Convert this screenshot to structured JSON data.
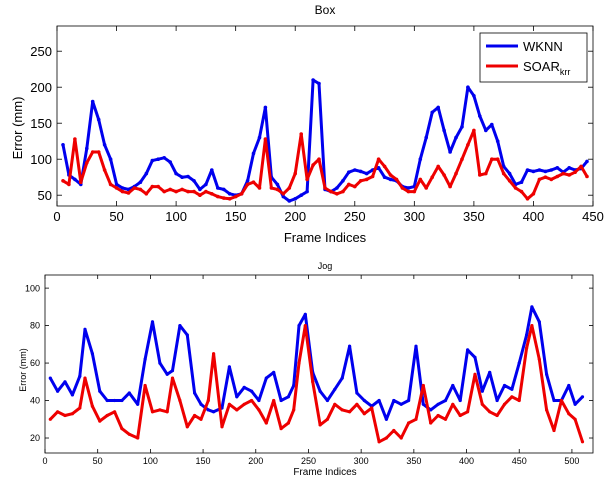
{
  "chart_data": [
    {
      "type": "line",
      "title": "Box",
      "xlabel": "Frame Indices",
      "ylabel": "Error (mm)",
      "xlim": [
        0,
        450
      ],
      "ylim": [
        35,
        285
      ],
      "xticks": [
        0,
        50,
        100,
        150,
        200,
        250,
        300,
        350,
        400,
        450
      ],
      "yticks": [
        50,
        100,
        150,
        200,
        250
      ],
      "legend": {
        "placement": "top-right",
        "entries": [
          "WKNN",
          "SOAR"
        ],
        "subscript": "krr"
      },
      "series": [
        {
          "name": "WKNN",
          "color": "#0000ee",
          "x": [
            5,
            10,
            15,
            20,
            25,
            30,
            35,
            40,
            45,
            50,
            55,
            60,
            65,
            70,
            75,
            80,
            85,
            90,
            95,
            100,
            105,
            110,
            115,
            120,
            125,
            130,
            135,
            140,
            145,
            150,
            155,
            160,
            165,
            170,
            175,
            180,
            185,
            190,
            195,
            200,
            205,
            210,
            215,
            220,
            225,
            230,
            235,
            240,
            245,
            250,
            255,
            260,
            265,
            270,
            275,
            280,
            285,
            290,
            295,
            300,
            305,
            310,
            315,
            320,
            325,
            330,
            335,
            340,
            345,
            350,
            355,
            360,
            365,
            370,
            375,
            380,
            385,
            390,
            395,
            400,
            405,
            410,
            415,
            420,
            425,
            430,
            435,
            440,
            445
          ],
          "y": [
            120,
            78,
            72,
            65,
            115,
            180,
            155,
            120,
            100,
            65,
            60,
            58,
            62,
            68,
            80,
            98,
            100,
            102,
            96,
            80,
            75,
            76,
            70,
            58,
            65,
            85,
            60,
            58,
            52,
            50,
            52,
            70,
            108,
            130,
            172,
            75,
            65,
            48,
            42,
            45,
            50,
            55,
            210,
            205,
            58,
            55,
            60,
            70,
            82,
            85,
            83,
            80,
            85,
            88,
            75,
            72,
            70,
            62,
            60,
            62,
            100,
            130,
            165,
            172,
            140,
            110,
            130,
            145,
            200,
            188,
            160,
            140,
            148,
            125,
            90,
            80,
            65,
            68,
            85,
            83,
            85,
            83,
            85,
            88,
            82,
            88,
            85,
            87,
            97
          ]
        },
        {
          "name": "SOAR",
          "color": "#ee0000",
          "x": [
            5,
            10,
            15,
            20,
            25,
            30,
            35,
            40,
            45,
            50,
            55,
            60,
            65,
            70,
            75,
            80,
            85,
            90,
            95,
            100,
            105,
            110,
            115,
            120,
            125,
            130,
            135,
            140,
            145,
            150,
            155,
            160,
            165,
            170,
            175,
            180,
            185,
            190,
            195,
            200,
            205,
            210,
            215,
            220,
            225,
            230,
            235,
            240,
            245,
            250,
            255,
            260,
            265,
            270,
            275,
            280,
            285,
            290,
            295,
            300,
            305,
            310,
            315,
            320,
            325,
            330,
            335,
            340,
            345,
            350,
            355,
            360,
            365,
            370,
            375,
            380,
            385,
            390,
            395,
            400,
            405,
            410,
            415,
            420,
            425,
            430,
            435,
            440,
            445
          ],
          "y": [
            70,
            65,
            128,
            68,
            95,
            110,
            110,
            85,
            65,
            60,
            55,
            53,
            60,
            58,
            52,
            62,
            62,
            55,
            58,
            55,
            58,
            55,
            55,
            50,
            55,
            52,
            48,
            46,
            45,
            48,
            52,
            65,
            68,
            60,
            128,
            60,
            58,
            52,
            60,
            80,
            135,
            72,
            92,
            100,
            60,
            55,
            52,
            55,
            65,
            62,
            70,
            72,
            76,
            100,
            90,
            78,
            72,
            60,
            55,
            55,
            72,
            60,
            75,
            90,
            78,
            62,
            80,
            100,
            120,
            140,
            78,
            80,
            100,
            100,
            80,
            70,
            60,
            55,
            45,
            52,
            72,
            75,
            72,
            76,
            80,
            78,
            82,
            90,
            76
          ]
        }
      ]
    },
    {
      "type": "line",
      "title": "Jog",
      "xlabel": "Frame Indices",
      "ylabel": "Error (mm)",
      "xlim": [
        0,
        520
      ],
      "ylim": [
        12,
        107
      ],
      "xticks": [
        0,
        50,
        100,
        150,
        200,
        250,
        300,
        350,
        400,
        450,
        500
      ],
      "yticks": [
        20,
        40,
        60,
        80,
        100
      ],
      "series": [
        {
          "name": "WKNN",
          "color": "#0000ee",
          "x": [
            5,
            12,
            19,
            26,
            33,
            38,
            45,
            52,
            59,
            66,
            73,
            80,
            88,
            95,
            102,
            109,
            116,
            121,
            128,
            135,
            142,
            148,
            155,
            160,
            168,
            175,
            182,
            189,
            196,
            203,
            210,
            217,
            224,
            231,
            236,
            241,
            247,
            254,
            261,
            268,
            275,
            282,
            289,
            296,
            303,
            310,
            317,
            324,
            331,
            338,
            345,
            352,
            359,
            366,
            373,
            380,
            387,
            394,
            401,
            408,
            415,
            422,
            429,
            436,
            443,
            450,
            457,
            462,
            469,
            476,
            483,
            490,
            497,
            503,
            510
          ],
          "y": [
            52,
            45,
            50,
            43,
            53,
            78,
            65,
            45,
            40,
            40,
            40,
            44,
            38,
            62,
            82,
            60,
            54,
            56,
            80,
            75,
            44,
            38,
            35,
            34,
            36,
            58,
            42,
            47,
            45,
            40,
            52,
            55,
            40,
            42,
            48,
            80,
            86,
            55,
            45,
            40,
            46,
            52,
            69,
            44,
            40,
            37,
            40,
            30,
            40,
            38,
            40,
            69,
            38,
            35,
            38,
            40,
            48,
            40,
            67,
            63,
            45,
            55,
            40,
            48,
            46,
            60,
            75,
            90,
            82,
            54,
            40,
            40,
            48,
            38,
            42
          ]
        },
        {
          "name": "SOAR",
          "color": "#ee0000",
          "x": [
            5,
            12,
            19,
            26,
            33,
            38,
            45,
            52,
            59,
            66,
            73,
            80,
            88,
            95,
            102,
            109,
            116,
            121,
            128,
            135,
            142,
            148,
            155,
            160,
            168,
            175,
            182,
            189,
            196,
            203,
            210,
            217,
            224,
            231,
            236,
            241,
            247,
            254,
            261,
            268,
            275,
            282,
            289,
            296,
            303,
            310,
            317,
            324,
            331,
            338,
            345,
            352,
            359,
            366,
            373,
            380,
            387,
            394,
            401,
            408,
            415,
            422,
            429,
            436,
            443,
            450,
            457,
            462,
            469,
            476,
            483,
            490,
            497,
            503,
            510
          ],
          "y": [
            30,
            34,
            32,
            33,
            36,
            52,
            37,
            29,
            32,
            34,
            25,
            22,
            20,
            48,
            34,
            35,
            34,
            52,
            40,
            26,
            32,
            30,
            40,
            65,
            26,
            38,
            35,
            38,
            40,
            35,
            28,
            40,
            25,
            28,
            35,
            60,
            80,
            50,
            27,
            30,
            38,
            35,
            34,
            38,
            33,
            36,
            18,
            20,
            24,
            20,
            28,
            30,
            48,
            28,
            32,
            30,
            38,
            32,
            34,
            54,
            38,
            34,
            32,
            38,
            42,
            40,
            68,
            80,
            62,
            35,
            24,
            40,
            33,
            30,
            18
          ]
        }
      ]
    }
  ]
}
